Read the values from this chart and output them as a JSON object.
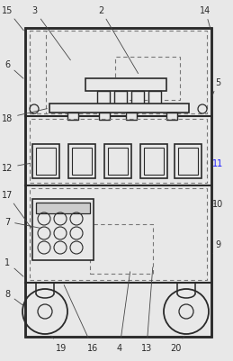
{
  "bg_color": "#e8e8e8",
  "line_color": "#2a2a2a",
  "dashed_color": "#777777",
  "label_color_blue": "#1a1aff",
  "label_color_black": "#2a2a2a",
  "blue_labels": [
    "11"
  ],
  "fig_width": 2.59,
  "fig_height": 4.02
}
